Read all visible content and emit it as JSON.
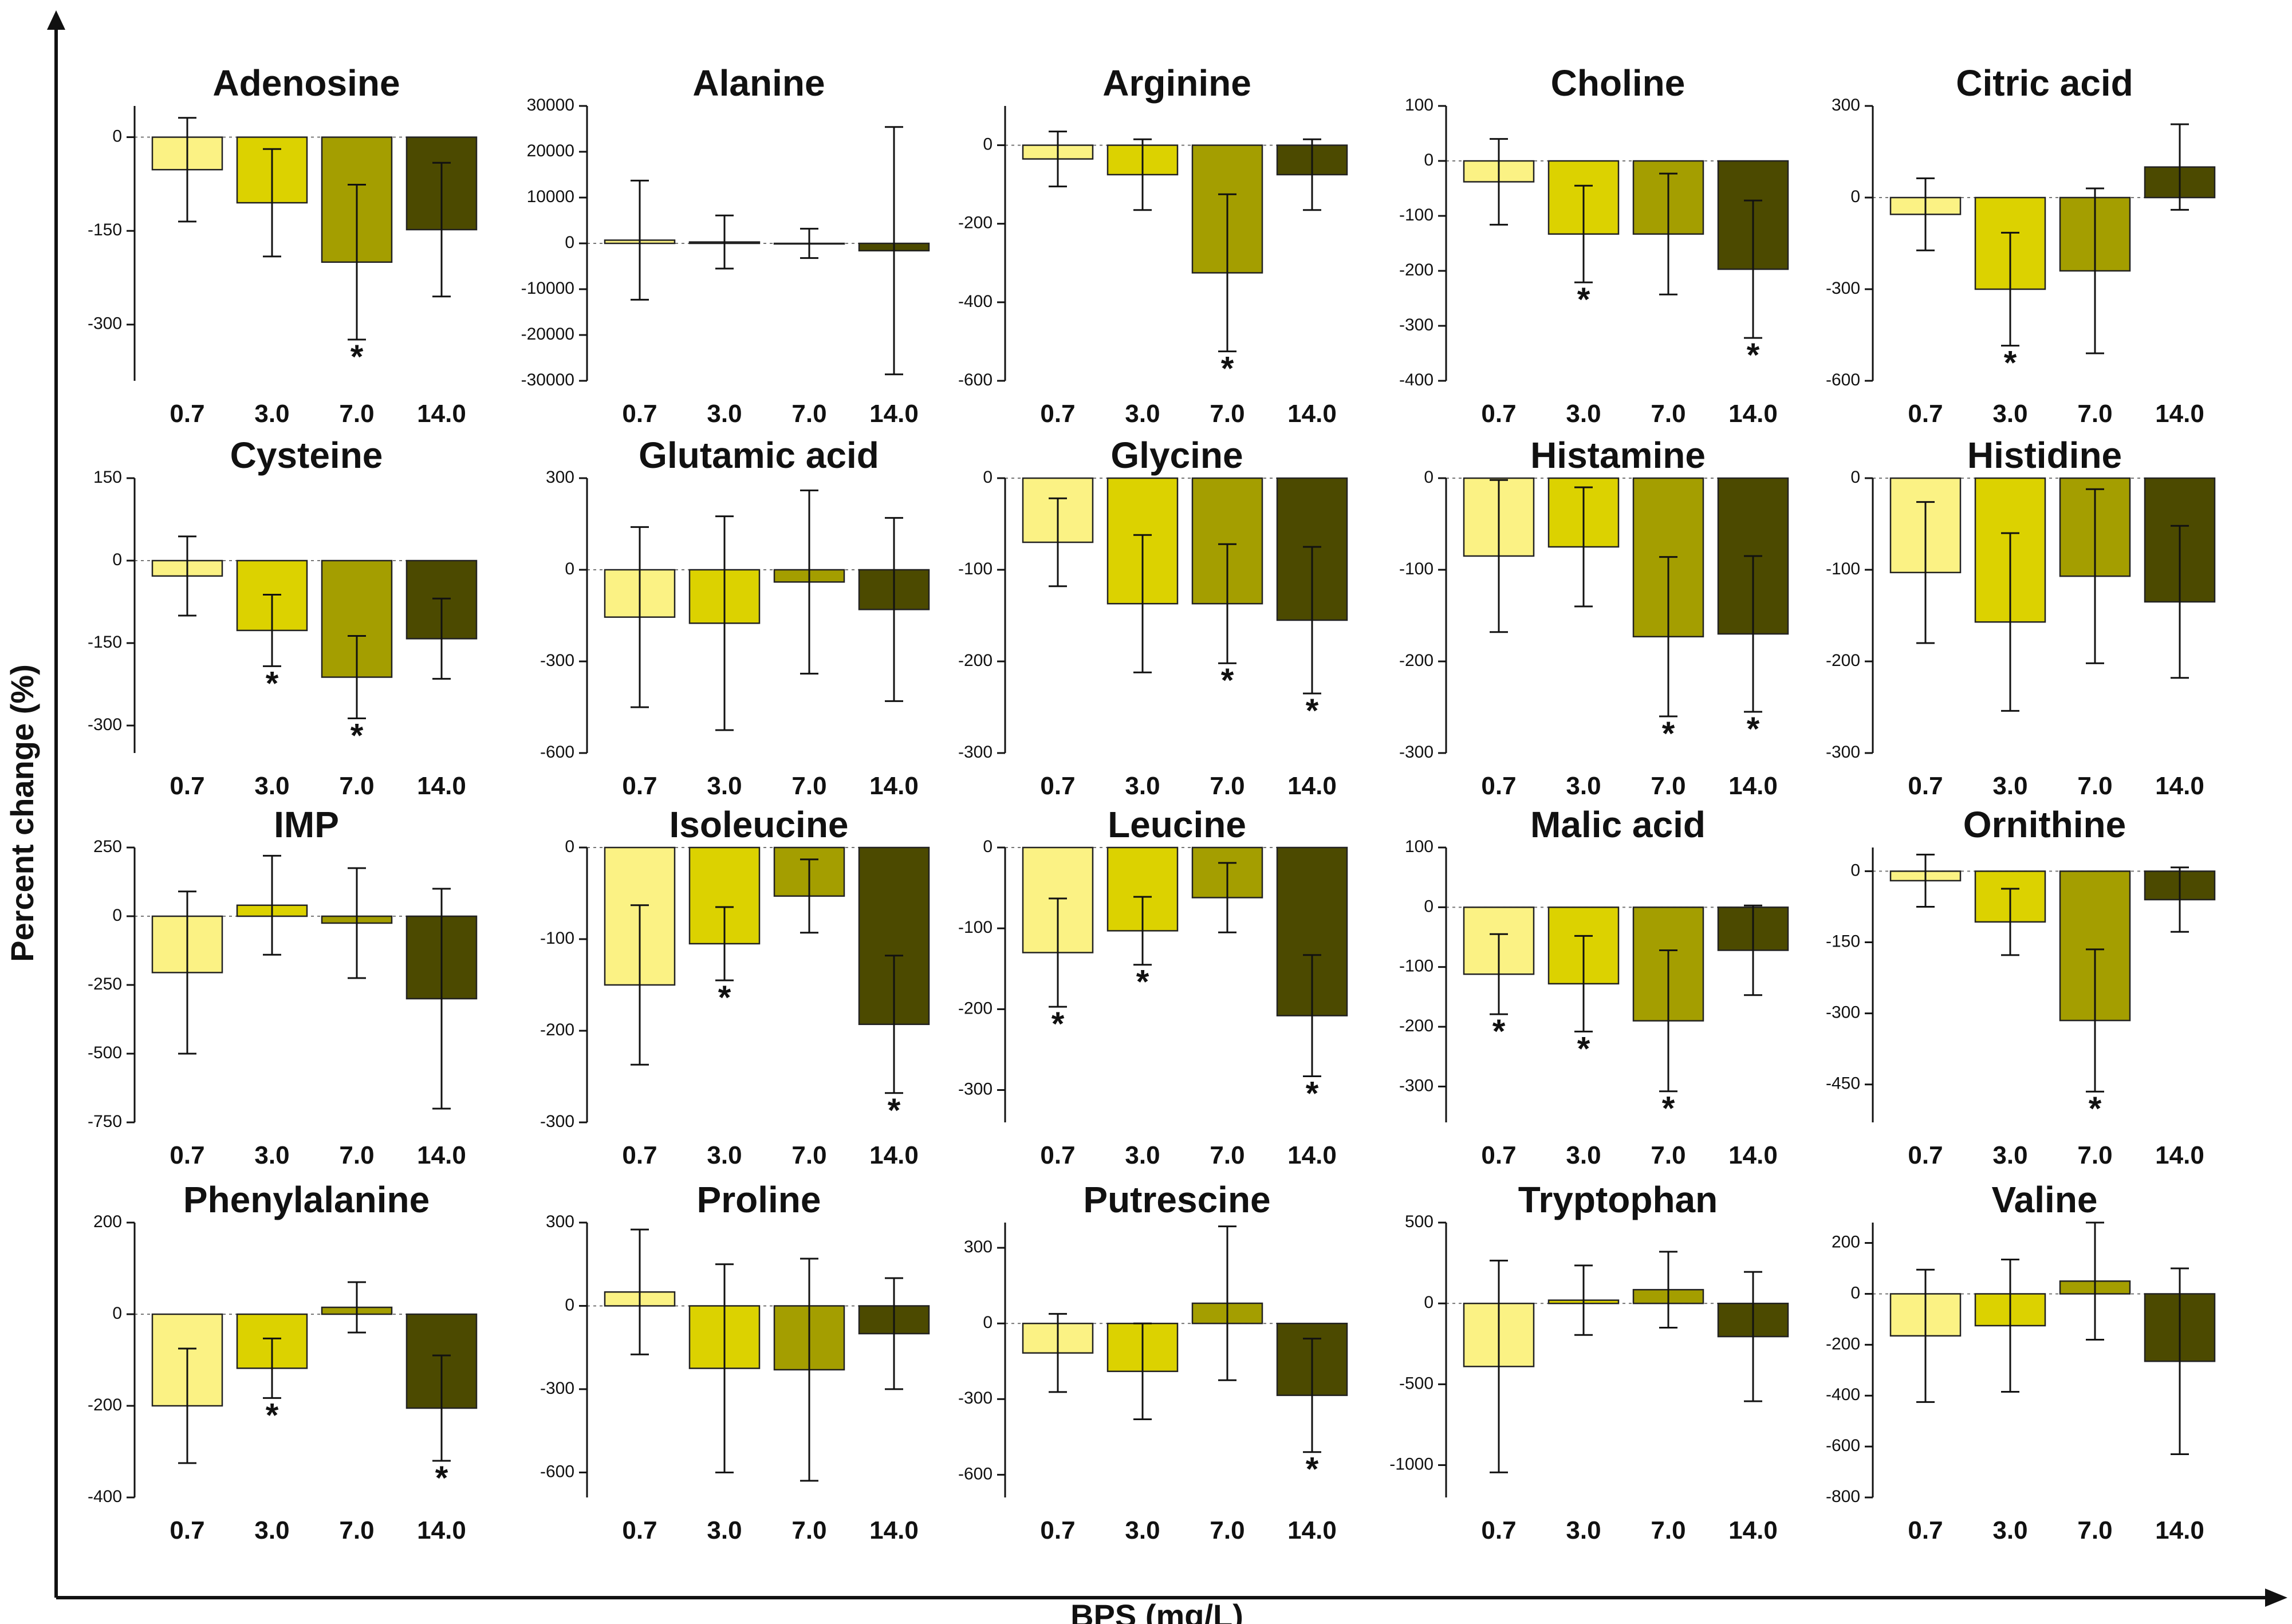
{
  "figure": {
    "ylabel": "Percent change (%)",
    "xlabel": "BPS (mg/L)"
  },
  "colors": {
    "0.7": "#fbf284",
    "3.0": "#dcd200",
    "7.0": "#a49e00",
    "14.0": "#4c4a00",
    "axis": "#111111"
  },
  "chart_data": [
    {
      "type": "bar",
      "title": "Adenosine",
      "categories": [
        "0.7",
        "3.0",
        "7.0",
        "14.0"
      ],
      "values": [
        -52,
        -105,
        -200,
        -148
      ],
      "errors": [
        83,
        86,
        124,
        107
      ],
      "significant": [
        false,
        false,
        true,
        false
      ],
      "ylim": [
        -390,
        50
      ],
      "yticks": [
        0,
        -150,
        -300
      ]
    },
    {
      "type": "bar",
      "title": "Alanine",
      "categories": [
        "0.7",
        "3.0",
        "7.0",
        "14.0"
      ],
      "values": [
        700,
        300,
        0,
        -1600
      ],
      "errors": [
        13000,
        5800,
        3200,
        27000
      ],
      "significant": [
        false,
        false,
        false,
        false
      ],
      "ylim": [
        -30000,
        30000
      ],
      "yticks": [
        30000,
        20000,
        10000,
        0,
        -10000,
        -20000,
        -30000
      ]
    },
    {
      "type": "bar",
      "title": "Arginine",
      "categories": [
        "0.7",
        "3.0",
        "7.0",
        "14.0"
      ],
      "values": [
        -35,
        -75,
        -325,
        -75
      ],
      "errors": [
        70,
        90,
        200,
        90
      ],
      "significant": [
        false,
        false,
        true,
        false
      ],
      "ylim": [
        -600,
        100
      ],
      "yticks": [
        0,
        -200,
        -400,
        -600
      ]
    },
    {
      "type": "bar",
      "title": "Choline",
      "categories": [
        "0.7",
        "3.0",
        "7.0",
        "14.0"
      ],
      "values": [
        -38,
        -133,
        -133,
        -197
      ],
      "errors": [
        78,
        88,
        110,
        125
      ],
      "significant": [
        false,
        true,
        false,
        true
      ],
      "ylim": [
        -400,
        100
      ],
      "yticks": [
        100,
        0,
        -100,
        -200,
        -300,
        -400
      ]
    },
    {
      "type": "bar",
      "title": "Citric acid",
      "categories": [
        "0.7",
        "3.0",
        "7.0",
        "14.0"
      ],
      "values": [
        -55,
        -300,
        -240,
        100
      ],
      "errors": [
        118,
        185,
        270,
        140
      ],
      "significant": [
        false,
        true,
        false,
        false
      ],
      "ylim": [
        -600,
        300
      ],
      "yticks": [
        300,
        0,
        -300,
        -600
      ]
    },
    {
      "type": "bar",
      "title": "Cysteine",
      "categories": [
        "0.7",
        "3.0",
        "7.0",
        "14.0"
      ],
      "values": [
        -28,
        -127,
        -212,
        -142
      ],
      "errors": [
        72,
        65,
        75,
        73
      ],
      "significant": [
        false,
        true,
        true,
        false
      ],
      "ylim": [
        -350,
        150
      ],
      "yticks": [
        150,
        0,
        -150,
        -300
      ]
    },
    {
      "type": "bar",
      "title": "Glutamic acid",
      "categories": [
        "0.7",
        "3.0",
        "7.0",
        "14.0"
      ],
      "values": [
        -155,
        -175,
        -40,
        -130
      ],
      "errors": [
        295,
        350,
        300,
        300
      ],
      "significant": [
        false,
        false,
        false,
        false
      ],
      "ylim": [
        -600,
        300
      ],
      "yticks": [
        300,
        0,
        -300,
        -600
      ]
    },
    {
      "type": "bar",
      "title": "Glycine",
      "categories": [
        "0.7",
        "3.0",
        "7.0",
        "14.0"
      ],
      "values": [
        -70,
        -137,
        -137,
        -155
      ],
      "errors": [
        48,
        75,
        65,
        80
      ],
      "significant": [
        false,
        false,
        true,
        true
      ],
      "ylim": [
        -300,
        0
      ],
      "yticks": [
        0,
        -100,
        -200,
        -300
      ]
    },
    {
      "type": "bar",
      "title": "Histamine",
      "categories": [
        "0.7",
        "3.0",
        "7.0",
        "14.0"
      ],
      "values": [
        -85,
        -75,
        -173,
        -170
      ],
      "errors": [
        83,
        65,
        87,
        85
      ],
      "significant": [
        false,
        false,
        true,
        true
      ],
      "ylim": [
        -300,
        0
      ],
      "yticks": [
        0,
        -100,
        -200,
        -300
      ]
    },
    {
      "type": "bar",
      "title": "Histidine",
      "categories": [
        "0.7",
        "3.0",
        "7.0",
        "14.0"
      ],
      "values": [
        -103,
        -157,
        -107,
        -135
      ],
      "errors": [
        77,
        97,
        95,
        83
      ],
      "significant": [
        false,
        false,
        false,
        false
      ],
      "ylim": [
        -300,
        0
      ],
      "yticks": [
        0,
        -100,
        -200,
        -300
      ]
    },
    {
      "type": "bar",
      "title": "IMP",
      "categories": [
        "0.7",
        "3.0",
        "7.0",
        "14.0"
      ],
      "values": [
        -205,
        40,
        -25,
        -300
      ],
      "errors": [
        295,
        180,
        200,
        400
      ],
      "significant": [
        false,
        false,
        false,
        false
      ],
      "ylim": [
        -750,
        250
      ],
      "yticks": [
        250,
        0,
        -250,
        -500,
        -750
      ]
    },
    {
      "type": "bar",
      "title": "Isoleucine",
      "categories": [
        "0.7",
        "3.0",
        "7.0",
        "14.0"
      ],
      "values": [
        -150,
        -105,
        -53,
        -193
      ],
      "errors": [
        87,
        40,
        40,
        75
      ],
      "significant": [
        false,
        true,
        false,
        true
      ],
      "ylim": [
        -300,
        0
      ],
      "yticks": [
        0,
        -100,
        -200,
        -300
      ]
    },
    {
      "type": "bar",
      "title": "Leucine",
      "categories": [
        "0.7",
        "3.0",
        "7.0",
        "14.0"
      ],
      "values": [
        -130,
        -103,
        -62,
        -208
      ],
      "errors": [
        67,
        42,
        43,
        75
      ],
      "significant": [
        true,
        true,
        false,
        true
      ],
      "ylim": [
        -340,
        0
      ],
      "yticks": [
        0,
        -100,
        -200,
        -300
      ]
    },
    {
      "type": "bar",
      "title": "Malic acid",
      "categories": [
        "0.7",
        "3.0",
        "7.0",
        "14.0"
      ],
      "values": [
        -112,
        -128,
        -190,
        -72
      ],
      "errors": [
        67,
        80,
        118,
        75
      ],
      "significant": [
        true,
        true,
        true,
        false
      ],
      "ylim": [
        -360,
        100
      ],
      "yticks": [
        100,
        0,
        -100,
        -200,
        -300
      ]
    },
    {
      "type": "bar",
      "title": "Ornithine",
      "categories": [
        "0.7",
        "3.0",
        "7.0",
        "14.0"
      ],
      "values": [
        -20,
        -107,
        -315,
        -60
      ],
      "errors": [
        55,
        70,
        150,
        68
      ],
      "significant": [
        false,
        false,
        true,
        false
      ],
      "ylim": [
        -530,
        50
      ],
      "yticks": [
        0,
        -150,
        -300,
        -450
      ]
    },
    {
      "type": "bar",
      "title": "Phenylalanine",
      "categories": [
        "0.7",
        "3.0",
        "7.0",
        "14.0"
      ],
      "values": [
        -200,
        -118,
        15,
        -205
      ],
      "errors": [
        125,
        65,
        55,
        115
      ],
      "significant": [
        false,
        true,
        false,
        true
      ],
      "ylim": [
        -400,
        200
      ],
      "yticks": [
        200,
        0,
        -200,
        -400
      ]
    },
    {
      "type": "bar",
      "title": "Proline",
      "categories": [
        "0.7",
        "3.0",
        "7.0",
        "14.0"
      ],
      "values": [
        50,
        -225,
        -230,
        -100
      ],
      "errors": [
        225,
        375,
        400,
        200
      ],
      "significant": [
        false,
        false,
        false,
        false
      ],
      "ylim": [
        -690,
        300
      ],
      "yticks": [
        300,
        0,
        -300,
        -600
      ]
    },
    {
      "type": "bar",
      "title": "Putrescine",
      "categories": [
        "0.7",
        "3.0",
        "7.0",
        "14.0"
      ],
      "values": [
        -117,
        -190,
        80,
        -285
      ],
      "errors": [
        155,
        190,
        305,
        225
      ],
      "significant": [
        false,
        false,
        false,
        true
      ],
      "ylim": [
        -690,
        400
      ],
      "yticks": [
        300,
        0,
        -300,
        -600
      ]
    },
    {
      "type": "bar",
      "title": "Tryptophan",
      "categories": [
        "0.7",
        "3.0",
        "7.0",
        "14.0"
      ],
      "values": [
        -390,
        20,
        85,
        -205
      ],
      "errors": [
        655,
        215,
        235,
        400
      ],
      "significant": [
        false,
        false,
        false,
        false
      ],
      "ylim": [
        -1200,
        500
      ],
      "yticks": [
        500,
        0,
        -500,
        -1000
      ]
    },
    {
      "type": "bar",
      "title": "Valine",
      "categories": [
        "0.7",
        "3.0",
        "7.0",
        "14.0"
      ],
      "values": [
        -165,
        -125,
        50,
        -265
      ],
      "errors": [
        260,
        260,
        230,
        365
      ],
      "significant": [
        false,
        false,
        false,
        false
      ],
      "ylim": [
        -800,
        280
      ],
      "yticks": [
        200,
        0,
        -200,
        -400,
        -600,
        -800
      ]
    }
  ]
}
